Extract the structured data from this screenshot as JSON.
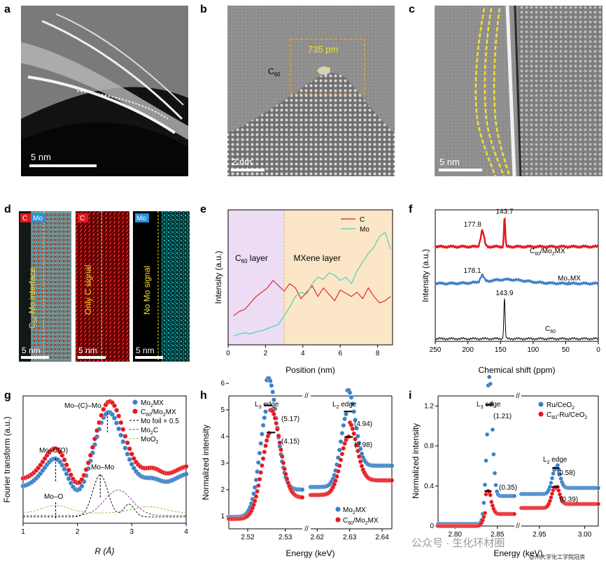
{
  "panels": {
    "a": {
      "letter": "a",
      "scale": "5 nm"
    },
    "b": {
      "letter": "b",
      "scale": "2 nm",
      "label": "C",
      "label_sub": "60",
      "measure": "735 pm"
    },
    "c": {
      "letter": "c",
      "scale": "5 nm"
    },
    "d": {
      "letter": "d",
      "badge_c": "C",
      "badge_mo": "Mo",
      "tile1_text": "C",
      "tile1_sub": "60",
      "tile1_text2": "-Mo interface",
      "tile2_text": "Only C signal",
      "tile3_text": "No Mo signal",
      "scale": "5 nm"
    },
    "e": {
      "letter": "e"
    },
    "f": {
      "letter": "f"
    },
    "g": {
      "letter": "g"
    },
    "h": {
      "letter": "h"
    },
    "i": {
      "letter": "i"
    }
  },
  "watermark": {
    "text": "公众号 · 生化环材圈",
    "small": "@州大学化工学院冠资"
  },
  "colors": {
    "red": "#e0191f",
    "blue": "#3b7fc4",
    "cyan": "#3fd0b8",
    "black": "#000000",
    "c60_region": "#ecdcf4",
    "mxene_region": "#fbe6c8",
    "purple": "#7b2a8c",
    "green": "#7ec03a"
  },
  "chart_data": [
    {
      "id": "e",
      "type": "line",
      "xlabel": "Position (nm)",
      "ylabel": "Intensity (a.u.)",
      "xlim": [
        0,
        8.8
      ],
      "xticks": [
        0,
        2,
        4,
        6,
        8
      ],
      "regions": [
        {
          "label": "C",
          "label_sub": "60",
          "label2": " layer",
          "from": 0,
          "to": 3.0
        },
        {
          "label": "MXene layer",
          "from": 3.0,
          "to": 8.8
        }
      ],
      "series": [
        {
          "name": "C",
          "color": "#e0191f",
          "x": [
            0.3,
            0.6,
            0.9,
            1.2,
            1.5,
            1.8,
            2.1,
            2.4,
            2.7,
            3.0,
            3.3,
            3.6,
            3.9,
            4.2,
            4.5,
            4.8,
            5.1,
            5.4,
            5.7,
            6.0,
            6.3,
            6.6,
            6.9,
            7.2,
            7.5,
            7.8,
            8.1,
            8.4,
            8.7
          ],
          "y": [
            0.22,
            0.26,
            0.28,
            0.34,
            0.4,
            0.44,
            0.48,
            0.55,
            0.5,
            0.45,
            0.52,
            0.48,
            0.38,
            0.44,
            0.5,
            0.4,
            0.48,
            0.42,
            0.36,
            0.46,
            0.43,
            0.4,
            0.44,
            0.38,
            0.48,
            0.4,
            0.34,
            0.36,
            0.4
          ]
        },
        {
          "name": "Mo",
          "color": "#3fd0b8",
          "x": [
            0.3,
            0.6,
            0.9,
            1.2,
            1.5,
            1.8,
            2.1,
            2.4,
            2.7,
            3.0,
            3.3,
            3.6,
            3.9,
            4.2,
            4.5,
            4.8,
            5.1,
            5.4,
            5.7,
            6.0,
            6.3,
            6.6,
            6.9,
            7.2,
            7.5,
            7.8,
            8.1,
            8.4,
            8.7
          ],
          "y": [
            0.03,
            0.05,
            0.06,
            0.05,
            0.07,
            0.08,
            0.1,
            0.12,
            0.14,
            0.22,
            0.3,
            0.4,
            0.44,
            0.42,
            0.52,
            0.58,
            0.56,
            0.62,
            0.6,
            0.55,
            0.58,
            0.52,
            0.64,
            0.72,
            0.8,
            0.86,
            0.96,
            1.0,
            0.84
          ]
        }
      ]
    },
    {
      "id": "f",
      "type": "line",
      "xlabel": "Chemical shift (ppm)",
      "ylabel": "Intensity (a.u.)",
      "xlim": [
        250,
        0
      ],
      "xticks": [
        250,
        200,
        150,
        100,
        50,
        0
      ],
      "series": [
        {
          "name": "C",
          "name_sub": "60",
          "name2": "/Mo",
          "name_sub2": "2",
          "name3": "MX",
          "color": "#e0191f",
          "baseline": 0.72,
          "peaks": [
            {
              "pos": 177.8,
              "height": 0.12,
              "label": "177.8"
            },
            {
              "pos": 143.7,
              "height": 0.22,
              "label": "143.7"
            }
          ]
        },
        {
          "name": "Mo",
          "name_sub": "2",
          "name2": "MX",
          "color": "#3b7fc4",
          "baseline": 0.44,
          "peaks": [
            {
              "pos": 178.1,
              "height": 0.05,
              "label": "178.1"
            }
          ]
        },
        {
          "name": "C",
          "name_sub": "60",
          "color": "#000000",
          "baseline": 0.02,
          "peaks": [
            {
              "pos": 143.9,
              "height": 0.3,
              "label": "143.9"
            }
          ]
        }
      ]
    },
    {
      "id": "g",
      "type": "line",
      "xlabel": "R (Å)",
      "ylabel": "Fourier transform (a.u.)",
      "xlim": [
        1,
        4
      ],
      "xticks": [
        1,
        2,
        3,
        4
      ],
      "annotations": [
        "Mo–(C)–Mo",
        "Mo–C(O)",
        "Mo–Mo",
        "Mo–O"
      ],
      "series": [
        {
          "name": "Mo",
          "name_sub": "2",
          "name2": "MX",
          "color": "#3b7fc4"
        },
        {
          "name": "C",
          "name_sub": "60",
          "name2": "/Mo",
          "name_sub2": "2",
          "name3": "MX",
          "color": "#e0191f"
        },
        {
          "name": "Mo foil × 0.5",
          "color": "#000000",
          "dash": true
        },
        {
          "name": "Mo",
          "name_sub": "2",
          "name2": "C",
          "color": "#7b2a8c",
          "dash": true
        },
        {
          "name": "MoO",
          "name_sub": "2",
          "color": "#7ec03a",
          "dash": true
        }
      ]
    },
    {
      "id": "h",
      "type": "line",
      "xlabel": "Energy (keV)",
      "ylabel": "Normalized intensity",
      "ylim": [
        1,
        6
      ],
      "yticks": [
        1,
        2,
        3,
        4,
        5,
        6
      ],
      "xticks": [
        "2.52",
        "2.53",
        "2.62",
        "2.63",
        "2.64"
      ],
      "edges": [
        "L",
        "L"
      ],
      "edge_subs": [
        "3",
        "2"
      ],
      "peak_labels": [
        "(5.17)",
        "(4.15)",
        "(4.94)",
        "(3.98)"
      ],
      "series": [
        {
          "name": "Mo",
          "name_sub": "2",
          "name2": "MX",
          "color": "#3b7fc4",
          "peaks": [
            5.17,
            4.94
          ]
        },
        {
          "name": "C",
          "name_sub": "60",
          "name2": "/Mo",
          "name_sub2": "2",
          "name3": "MX",
          "color": "#e0191f",
          "peaks": [
            4.15,
            3.98
          ]
        }
      ]
    },
    {
      "id": "i",
      "type": "line",
      "xlabel": "Energy (keV)",
      "ylabel": "Normalized intensity",
      "ylim": [
        0,
        1.3
      ],
      "yticks": [
        "0",
        "0.4",
        "0.8",
        "1.2"
      ],
      "xticks": [
        "2.80",
        "2.85",
        "2.95",
        "3.00"
      ],
      "edges": [
        "L",
        "L"
      ],
      "edge_subs": [
        "3",
        "2"
      ],
      "peak_labels": [
        "(1.21)",
        "(0.35)",
        "(0.58)",
        "(0.39)"
      ],
      "series": [
        {
          "name": "Ru/CeO",
          "name_sub": "2",
          "color": "#3b7fc4",
          "peaks": [
            1.21,
            0.58
          ]
        },
        {
          "name": "C",
          "name_sub": "60",
          "name2": "-Ru/CeO",
          "name_sub2": "2",
          "color": "#e0191f",
          "peaks": [
            0.35,
            0.39
          ]
        }
      ]
    }
  ]
}
